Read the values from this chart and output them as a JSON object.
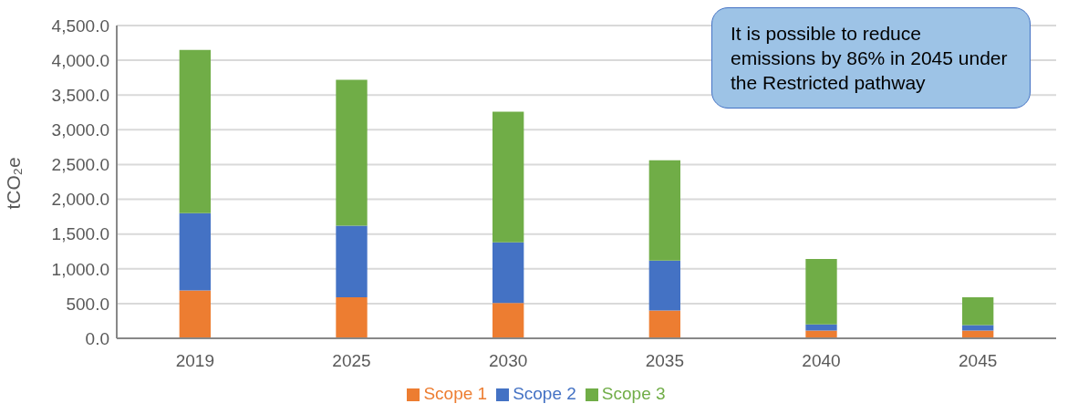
{
  "chart_data": {
    "type": "bar",
    "stacked": true,
    "ylabel": "tCO₂e",
    "categories": [
      "2019",
      "2025",
      "2030",
      "2035",
      "2040",
      "2045"
    ],
    "series": [
      {
        "name": "Scope 1",
        "color": "#ed7d31",
        "values": [
          690,
          590,
          510,
          400,
          110,
          110
        ]
      },
      {
        "name": "Scope 2",
        "color": "#4472c4",
        "values": [
          1110,
          1030,
          870,
          720,
          90,
          80
        ]
      },
      {
        "name": "Scope 3",
        "color": "#70ad47",
        "values": [
          2350,
          2100,
          1880,
          1440,
          940,
          400
        ]
      }
    ],
    "ylim": [
      0,
      4500
    ],
    "yticks": [
      {
        "value": 0,
        "label": "0.0"
      },
      {
        "value": 500,
        "label": "500.0"
      },
      {
        "value": 1000,
        "label": "1,000.0"
      },
      {
        "value": 1500,
        "label": "1,500.0"
      },
      {
        "value": 2000,
        "label": "2,000.0"
      },
      {
        "value": 2500,
        "label": "2,500.0"
      },
      {
        "value": 3000,
        "label": "3,000.0"
      },
      {
        "value": 3500,
        "label": "3,500.0"
      },
      {
        "value": 4000,
        "label": "4,000.0"
      },
      {
        "value": 4500,
        "label": "4,500.0"
      }
    ],
    "grid": "y",
    "legend": "bottom",
    "annotations": [
      "It is possible to reduce emissions by 86% in 2045 under the Restricted pathway"
    ]
  }
}
